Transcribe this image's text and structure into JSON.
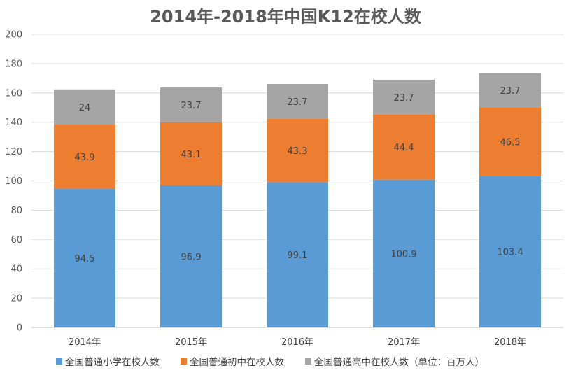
{
  "chart_data": {
    "type": "bar",
    "stacked": true,
    "title": "2014年-2018年中国K12在校人数",
    "categories": [
      "2014年",
      "2015年",
      "2016年",
      "2017年",
      "2018年"
    ],
    "series": [
      {
        "name": "全国普通小学在校人数",
        "color": "#5B9BD5",
        "values": [
          94.5,
          96.9,
          99.1,
          100.9,
          103.4
        ]
      },
      {
        "name": "全国普通初中在校人数",
        "color": "#ED7D31",
        "values": [
          43.9,
          43.1,
          43.3,
          44.4,
          46.5
        ]
      },
      {
        "name": "全国普通高中在校人数（单位：百万人）",
        "color": "#A5A5A5",
        "values": [
          24,
          23.7,
          23.7,
          23.7,
          23.7
        ]
      }
    ],
    "series_labels": [
      "24",
      "23.7",
      "23.7",
      "23.7",
      "23.7"
    ],
    "yticks": [
      "0",
      "20",
      "40",
      "60",
      "80",
      "100",
      "120",
      "140",
      "160",
      "180",
      "200"
    ],
    "ylim": [
      0,
      200
    ],
    "grid": true,
    "legend_position": "bottom"
  }
}
